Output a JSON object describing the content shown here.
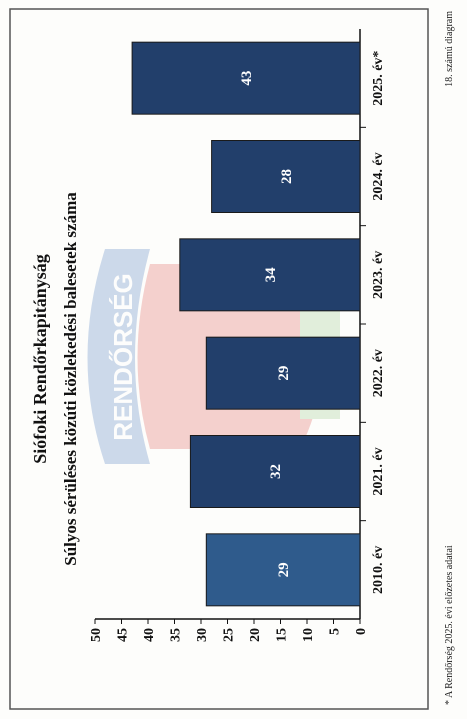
{
  "header": {
    "title": "Siófoki Rendőrkapitányság",
    "subtitle": "Súlyos sérüléses közúti közlekedési balesetek száma"
  },
  "watermark": {
    "text": "RENDŐRSÉG"
  },
  "footer": {
    "note": "* A Rendőrség 2025. évi előzetes adatai",
    "diagram_no": "18. számú diagram"
  },
  "colors": {
    "bar": "#223f6b",
    "bar_first": "#2f5b8c",
    "frame": "#555555"
  },
  "chart_data": {
    "type": "bar",
    "title": "Súlyos sérüléses közúti közlekedési balesetek száma",
    "categories": [
      "2010. év",
      "2021. év",
      "2022. év",
      "2023. év",
      "2024. év",
      "2025. év*"
    ],
    "values": [
      29,
      32,
      29,
      34,
      28,
      43
    ],
    "ylim": [
      0,
      50
    ],
    "yticks": [
      "0",
      "5",
      "10",
      "15",
      "20",
      "25",
      "30",
      "35",
      "40",
      "45",
      "50"
    ],
    "data_labels": [
      "29",
      "32",
      "29",
      "34",
      "28",
      "43"
    ],
    "grid": false,
    "legend": "none"
  }
}
